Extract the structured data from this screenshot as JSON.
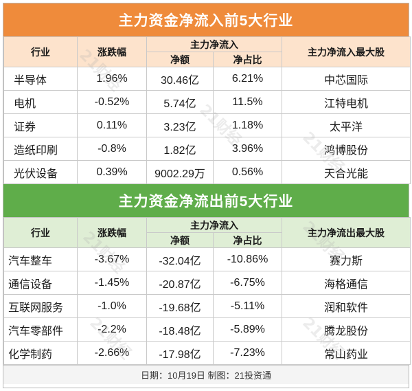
{
  "inflow": {
    "title": "主力资金净流入前5大行业",
    "headers": {
      "industry": "行业",
      "change": "涨跌幅",
      "netflow_group": "主力净流入",
      "amount": "净额",
      "ratio": "净占比",
      "top_stock": "主力净流入最大股"
    },
    "rows": [
      {
        "industry": "半导体",
        "change": "1.96%",
        "amount": "30.46亿",
        "ratio": "6.21%",
        "stock": "中芯国际"
      },
      {
        "industry": "电机",
        "change": "-0.52%",
        "amount": "5.74亿",
        "ratio": "11.5%",
        "stock": "江特电机"
      },
      {
        "industry": "证券",
        "change": "0.11%",
        "amount": "3.23亿",
        "ratio": "1.18%",
        "stock": "太平洋"
      },
      {
        "industry": "造纸印刷",
        "change": "-0.8%",
        "amount": "1.82亿",
        "ratio": "3.96%",
        "stock": "鸿博股份"
      },
      {
        "industry": "光伏设备",
        "change": "0.39%",
        "amount": "9002.29万",
        "ratio": "0.56%",
        "stock": "天合光能"
      }
    ]
  },
  "outflow": {
    "title": "主力资金净流出前5大行业",
    "headers": {
      "industry": "行业",
      "change": "涨跌幅",
      "netflow_group": "主力净流入",
      "amount": "净额",
      "ratio": "净占比",
      "top_stock": "主力净流出最大股"
    },
    "rows": [
      {
        "industry": "汽车整车",
        "change": "-3.67%",
        "amount": "-32.04亿",
        "ratio": "-10.86%",
        "stock": "赛力斯"
      },
      {
        "industry": "通信设备",
        "change": "-1.45%",
        "amount": "-20.87亿",
        "ratio": "-6.75%",
        "stock": "海格通信"
      },
      {
        "industry": "互联网服务",
        "change": "-1.0%",
        "amount": "-19.68亿",
        "ratio": "-5.11%",
        "stock": "润和软件"
      },
      {
        "industry": "汽车零部件",
        "change": "-2.2%",
        "amount": "-18.48亿",
        "ratio": "-5.89%",
        "stock": "腾龙股份"
      },
      {
        "industry": "化学制药",
        "change": "-2.66%",
        "amount": "-17.98亿",
        "ratio": "-7.23%",
        "stock": "常山药业"
      }
    ]
  },
  "footer": "日期：10月19日 制图：21投资通",
  "watermark": "21财经",
  "colors": {
    "inflow_banner": "#ef8b3b",
    "inflow_header": "#fde3cc",
    "outflow_banner": "#5fad4a",
    "outflow_header": "#dfeed5"
  }
}
